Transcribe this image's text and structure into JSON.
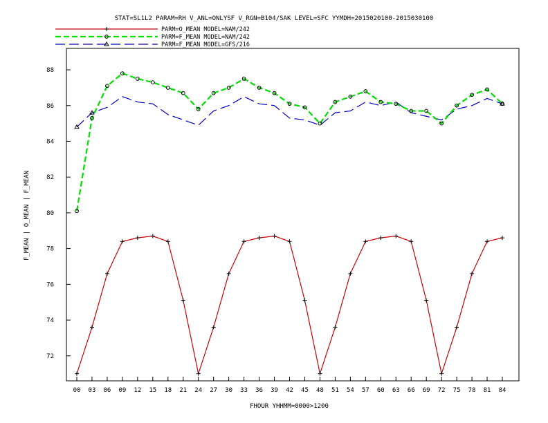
{
  "chart_data": {
    "type": "line",
    "title": "STAT=SL1L2 PARAM=RH V_ANL=ONLYSF V_RGN=B104/SAK LEVEL=SFC YYMDH=2015020100-2015030100",
    "xlabel": "FHOUR YHHMM=0000>1200",
    "ylabel": "F_MEAN | O_MEAN | F_MEAN",
    "x": [
      "00",
      "03",
      "06",
      "09",
      "12",
      "15",
      "18",
      "21",
      "24",
      "27",
      "30",
      "33",
      "36",
      "39",
      "42",
      "45",
      "48",
      "51",
      "54",
      "57",
      "60",
      "63",
      "66",
      "69",
      "72",
      "75",
      "78",
      "81",
      "84"
    ],
    "xlim": [
      0,
      84
    ],
    "ylim": [
      70.6,
      89.2
    ],
    "yticks": [
      72,
      74,
      76,
      78,
      80,
      82,
      84,
      86,
      88
    ],
    "ytick_labels": [
      "72",
      "74",
      "76",
      "78",
      "80",
      "82",
      "84",
      "86",
      "88"
    ],
    "legend_position": "top-left",
    "series": [
      {
        "name": "PARM=O_MEAN MODEL=NAM/242",
        "color": "#cc0000",
        "marker": "plus",
        "dash": "solid",
        "values": [
          71.0,
          73.6,
          76.6,
          78.4,
          78.6,
          78.7,
          78.4,
          75.1,
          71.0,
          73.6,
          76.6,
          78.4,
          78.6,
          78.7,
          78.4,
          75.1,
          71.0,
          73.6,
          76.6,
          78.4,
          78.6,
          78.7,
          78.4,
          75.1,
          71.0,
          73.6,
          76.6,
          78.4,
          78.6
        ]
      },
      {
        "name": "PARM=F_MEAN MODEL=NAM/242",
        "color": "#00dd00",
        "marker": "diamond",
        "dash": "dashed",
        "values": [
          80.1,
          85.3,
          87.1,
          87.8,
          87.5,
          87.3,
          87.0,
          86.7,
          85.8,
          86.7,
          87.0,
          87.5,
          87.0,
          86.7,
          86.1,
          85.9,
          85.0,
          86.2,
          86.5,
          86.8,
          86.2,
          86.1,
          85.7,
          85.7,
          85.0,
          86.0,
          86.6,
          86.9,
          86.1
        ]
      },
      {
        "name": "PARM=F_MEAN MODEL=GFS/216",
        "color": "#0000cc",
        "marker": "triangle",
        "dash": "longdash",
        "values": [
          84.8,
          85.6,
          85.9,
          86.5,
          86.2,
          86.1,
          85.5,
          85.2,
          84.9,
          85.7,
          86.0,
          86.5,
          86.1,
          86.0,
          85.3,
          85.2,
          84.9,
          85.6,
          85.7,
          86.2,
          86.0,
          86.2,
          85.6,
          85.4,
          85.2,
          85.8,
          86.0,
          86.4,
          86.1
        ]
      }
    ]
  }
}
